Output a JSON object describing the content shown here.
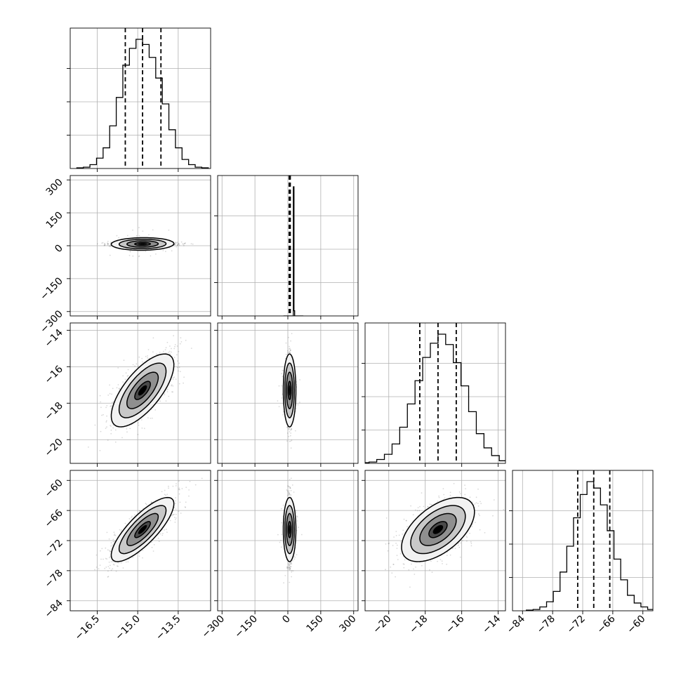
{
  "chart_data": {
    "type": "corner",
    "parameters": [
      {
        "range": [
          -17.5,
          -12.3
        ],
        "mean": -14.82,
        "sd": 0.58,
        "quantiles": [
          -15.46,
          -14.82,
          -14.14
        ],
        "ticks": [
          -16.5,
          -15.0,
          -13.5
        ],
        "tick_labels": [
          "−16.5",
          "−15.0",
          "−13.5"
        ]
      },
      {
        "range": [
          -320,
          320
        ],
        "mean": 8,
        "sd": 6,
        "quantiles": [
          6,
          8,
          11
        ],
        "ticks": [
          -300,
          -150,
          0,
          150,
          300
        ],
        "tick_labels": [
          "−300",
          "−150",
          "0",
          "150",
          "300"
        ]
      },
      {
        "range": [
          -21.3,
          -13.6
        ],
        "mean": -17.3,
        "sd": 1.0,
        "quantiles": [
          -18.3,
          -17.3,
          -16.3
        ],
        "ticks": [
          -20,
          -18,
          -16,
          -14
        ],
        "tick_labels": [
          "−20",
          "−18",
          "−16",
          "−14"
        ]
      },
      {
        "range": [
          -86,
          -58
        ],
        "mean": -69.8,
        "sd": 3.2,
        "quantiles": [
          -73.0,
          -69.8,
          -66.6
        ],
        "ticks": [
          -84,
          -78,
          -72,
          -66,
          -60
        ],
        "tick_labels": [
          "−84",
          "−78",
          "−72",
          "−66",
          "−60"
        ]
      }
    ],
    "correlations": [
      [
        0,
        1,
        0.05
      ],
      [
        0,
        2,
        0.7
      ],
      [
        0,
        3,
        0.8
      ],
      [
        1,
        2,
        0.0
      ],
      [
        1,
        3,
        0.0
      ],
      [
        2,
        3,
        0.55
      ]
    ],
    "histograms": [
      {
        "bins": 20,
        "counts": [
          0.005,
          0.01,
          0.03,
          0.08,
          0.16,
          0.33,
          0.55,
          0.8,
          0.93,
          1.0,
          0.96,
          0.86,
          0.7,
          0.5,
          0.3,
          0.16,
          0.07,
          0.03,
          0.01,
          0.005
        ]
      },
      {
        "bins": 30,
        "counts": [
          0,
          0,
          0,
          0,
          0,
          0,
          0,
          0,
          0,
          0,
          0,
          0,
          0,
          0,
          0,
          1.0,
          0.04,
          0,
          0,
          0,
          0,
          0,
          0,
          0,
          0,
          0,
          0,
          0,
          0,
          0
        ]
      },
      {
        "bins": 20,
        "counts": [
          0.005,
          0.01,
          0.03,
          0.07,
          0.15,
          0.28,
          0.46,
          0.64,
          0.82,
          0.93,
          1.0,
          0.92,
          0.78,
          0.6,
          0.4,
          0.23,
          0.12,
          0.06,
          0.02,
          0.01
        ]
      },
      {
        "bins": 20,
        "counts": [
          0.005,
          0.01,
          0.03,
          0.07,
          0.15,
          0.3,
          0.5,
          0.72,
          0.9,
          1.0,
          0.95,
          0.82,
          0.62,
          0.4,
          0.24,
          0.12,
          0.06,
          0.03,
          0.01,
          0.005
        ]
      }
    ],
    "contour_levels_sigma": [
      0.5,
      1.0,
      1.5,
      2.0
    ],
    "grid": true,
    "colors": {
      "ink": "#000000",
      "grid": "#b0b0b0",
      "density": "#000000"
    }
  }
}
